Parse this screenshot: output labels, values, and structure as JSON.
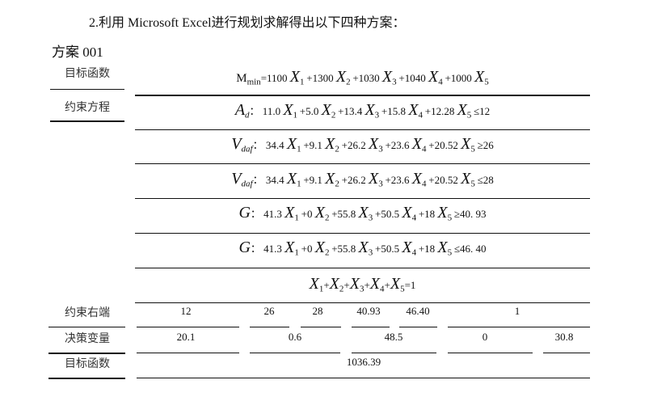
{
  "heading": "2.利用 Microsoft  Excel进行规划求解得出以下四种方案：",
  "scheme_title": "方案 001",
  "labels": {
    "objective": "目标函数",
    "constraints": "约束方程",
    "rhs": "约束右端",
    "decision": "决策变量",
    "objective_value_label": "目标函数"
  },
  "objective_eq": {
    "lhs": "M",
    "sub": "min",
    "coefs": [
      "=1100",
      "+1300",
      "+1030",
      "+1040",
      "+1000"
    ]
  },
  "constraints": [
    {
      "sym": "A",
      "sub": "d",
      "coefs": [
        "11.0",
        "+5.0",
        "+13.4",
        "+15.8",
        "+12.28"
      ],
      "rel": "≤12"
    },
    {
      "sym": "V",
      "sub": "daf",
      "coefs": [
        "34.4",
        "+9.1",
        "+26.2",
        "+23.6",
        "+20.52"
      ],
      "rel": "≥26"
    },
    {
      "sym": "V",
      "sub": "daf",
      "coefs": [
        "34.4",
        "+9.1",
        "+26.2",
        "+23.6",
        "+20.52"
      ],
      "rel": "≤28"
    },
    {
      "sym": "G",
      "sub": "",
      "coefs": [
        "41.3",
        "+0",
        "+55.8",
        "+50.5",
        "+18"
      ],
      "rel": "≥40. 93"
    },
    {
      "sym": "G",
      "sub": "",
      "coefs": [
        "41.3",
        "+0",
        "+55.8",
        "+50.5",
        "+18"
      ],
      "rel": "≤46. 40"
    }
  ],
  "sum_constraint": {
    "ops": [
      "",
      "+",
      "+",
      "+",
      "+"
    ],
    "rel": "=1"
  },
  "variable": "X",
  "rhs_values": [
    "12",
    "26",
    "28",
    "40.93",
    "46.40",
    "1"
  ],
  "decision_values": [
    "20.1",
    "0.6",
    "48.5",
    "0",
    "30.8"
  ],
  "objective_value": "1036.39"
}
